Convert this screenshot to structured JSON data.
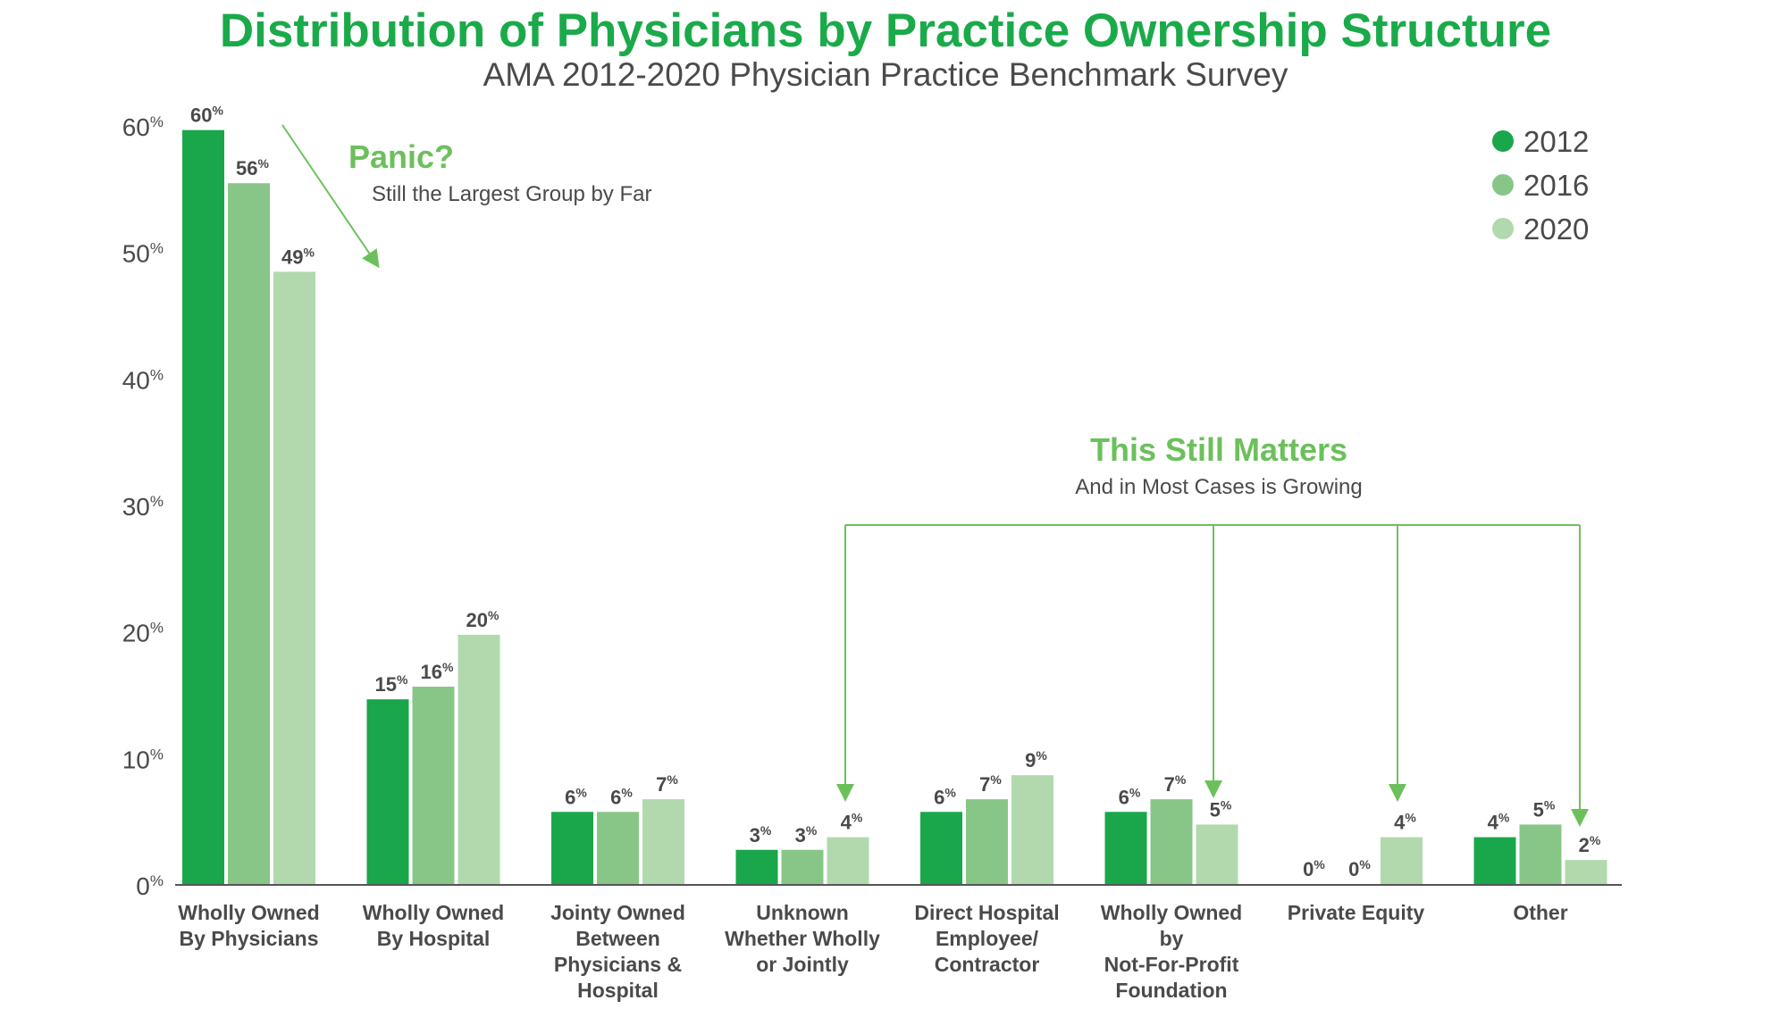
{
  "chart_data": {
    "type": "bar",
    "title": "Distribution of Physicians by Practice Ownership Structure",
    "subtitle": "AMA 2012-2020 Physician Practice Benchmark  Survey",
    "categories": [
      [
        "Wholly Owned",
        "By Physicians"
      ],
      [
        "Wholly Owned",
        "By Hospital"
      ],
      [
        "Jointy Owned",
        "Between",
        "Physicians &",
        "Hospital"
      ],
      [
        "Unknown",
        "Whether Wholly",
        "or Jointly"
      ],
      [
        "Direct Hospital",
        "Employee/",
        "Contractor"
      ],
      [
        "Wholly Owned",
        "by",
        "Not-For-Profit",
        "Foundation"
      ],
      [
        "Private Equity"
      ],
      [
        "Other"
      ]
    ],
    "series": [
      {
        "name": "2012",
        "color": "#1aa64b",
        "values": [
          60,
          15,
          6,
          3,
          6,
          6,
          0,
          4
        ]
      },
      {
        "name": "2016",
        "color": "#88c688",
        "values": [
          56,
          16,
          6,
          3,
          7,
          7,
          0,
          5
        ]
      },
      {
        "name": "2020",
        "color": "#b1d9ad",
        "values": [
          49,
          20,
          7,
          4,
          9,
          5,
          4,
          2
        ]
      }
    ],
    "bar_heights_pct": [
      [
        59.6,
        14.6,
        5.7,
        2.7,
        5.7,
        5.7,
        0,
        3.7
      ],
      [
        55.4,
        15.6,
        5.7,
        2.7,
        6.7,
        6.7,
        0,
        4.7
      ],
      [
        48.4,
        19.7,
        6.7,
        3.7,
        8.6,
        4.7,
        3.7,
        1.9
      ]
    ],
    "ylim": [
      0,
      60
    ],
    "yticks": [
      0,
      10,
      20,
      30,
      40,
      50,
      60
    ],
    "tick_suffix": "%",
    "legend_position": "top-right",
    "grid": false,
    "annotations": {
      "panic_title": "Panic?",
      "panic_subtitle": "Still the Largest Group by Far",
      "matters_title": "This Still Matters",
      "matters_subtitle": "And in Most Cases is Growing"
    },
    "colors": {
      "title": "#1aaa4a",
      "annotation": "#6cc05c",
      "text": "#4a4a4a",
      "axis": "#555555"
    }
  }
}
